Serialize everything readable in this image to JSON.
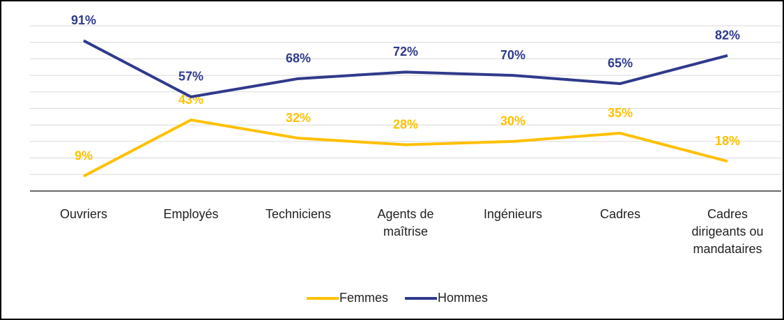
{
  "chart_data": {
    "type": "line",
    "categories": [
      "Ouvriers",
      "Employés",
      "Techniciens",
      "Agents de maîtrise",
      "Ingénieurs",
      "Cadres",
      "Cadres dirigeants ou mandataires"
    ],
    "series": [
      {
        "name": "Femmes",
        "color": "#FFC000",
        "values": [
          9,
          43,
          32,
          28,
          30,
          35,
          18
        ],
        "value_labels": [
          "9%",
          "43%",
          "32%",
          "28%",
          "30%",
          "35%",
          "18%"
        ]
      },
      {
        "name": "Hommes",
        "color": "#2F3A8C",
        "values": [
          91,
          57,
          68,
          72,
          70,
          65,
          82
        ],
        "value_labels": [
          "91%",
          "57%",
          "68%",
          "72%",
          "70%",
          "65%",
          "82%"
        ]
      }
    ],
    "ylim": [
      0,
      100
    ],
    "yticks": [
      0,
      10,
      20,
      30,
      40,
      50,
      60,
      70,
      80,
      90,
      100
    ],
    "grid": true,
    "legend": "bottom"
  }
}
